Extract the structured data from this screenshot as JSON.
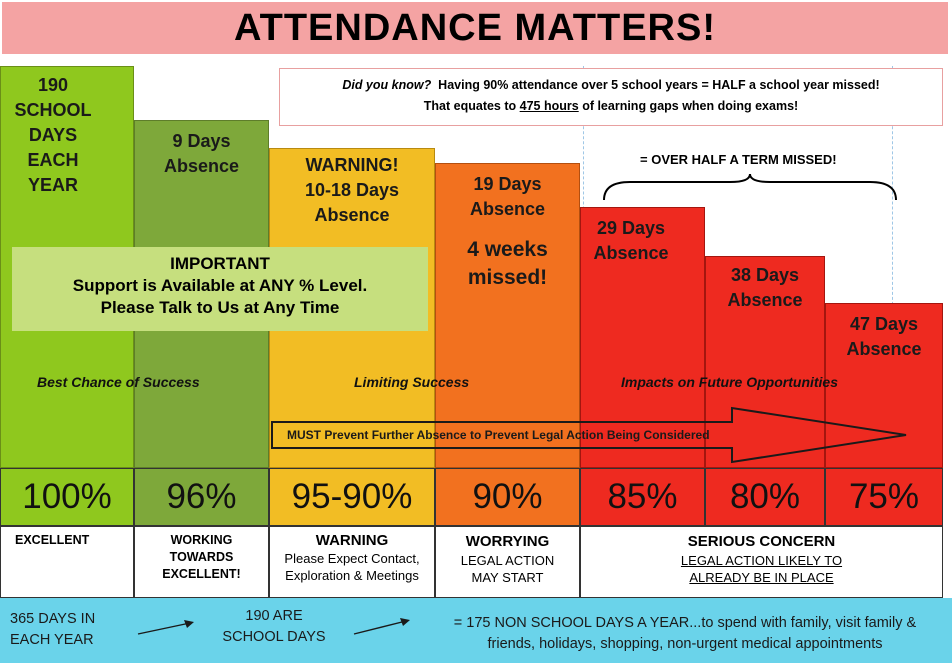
{
  "title": "ATTENDANCE MATTERS!",
  "info": {
    "line1_prefix": "Did you know?",
    "line1_rest": "Having 90% attendance over 5 school years = HALF a school year missed!",
    "line2_pre": "That equates to",
    "line2_hours": "475 hours",
    "line2_post": "of learning gaps when doing exams!"
  },
  "bars": [
    {
      "lines": [
        "190",
        "SCHOOL",
        "DAYS",
        "EACH",
        "YEAR"
      ],
      "color": "#8fc81e"
    },
    {
      "lines": [
        "9 Days",
        "Absence"
      ],
      "color": "#7ea83a"
    },
    {
      "lines": [
        "WARNING!",
        "10-18 Days",
        "Absence"
      ],
      "color": "#f2bd24"
    },
    {
      "lines": [
        "19 Days",
        "Absence"
      ],
      "extra": [
        "4 weeks",
        "missed!"
      ],
      "color": "#f2711f"
    },
    {
      "lines": [
        "29 Days",
        "Absence"
      ],
      "color": "#ee2a20"
    },
    {
      "lines": [
        "38 Days",
        "Absence"
      ],
      "color": "#ee2a20"
    },
    {
      "lines": [
        "47 Days",
        "Absence"
      ],
      "color": "#ee2a20"
    }
  ],
  "over_half_term": "= OVER HALF A TERM MISSED!",
  "important": {
    "heading": "IMPORTANT",
    "line1": "Support is Available at ANY % Level.",
    "line2": "Please Talk to Us at Any Time"
  },
  "zones": {
    "best": "Best Chance of Success",
    "limiting": "Limiting Success",
    "impacts": "Impacts on Future Opportunities"
  },
  "arrow": {
    "must": "MUST",
    "rest": "Prevent Further Absence to Prevent Legal Action Being Considered"
  },
  "percentages": [
    "100%",
    "96%",
    "95-90%",
    "90%",
    "85%",
    "80%",
    "75%"
  ],
  "categories": {
    "excellent": "EXCELLENT",
    "working": [
      "WORKING",
      "TOWARDS",
      "EXCELLENT!"
    ],
    "warning_title": "WARNING",
    "warning_sub": [
      "Please Expect Contact,",
      "Exploration & Meetings"
    ],
    "worrying_title": "WORRYING",
    "worrying_sub": [
      "LEGAL ACTION",
      "MAY START"
    ],
    "serious_title": "SERIOUS CONCERN",
    "serious_sub": [
      "LEGAL ACTION LIKELY TO",
      "ALREADY BE IN PLACE"
    ]
  },
  "bottom": {
    "days_year": [
      "365 DAYS IN",
      "EACH YEAR"
    ],
    "school_days": [
      "190 ARE",
      "SCHOOL DAYS"
    ],
    "non_school": [
      "= 175  NON SCHOOL DAYS A YEAR...to spend with family, visit family &",
      "friends, holidays, shopping, non-urgent medical appointments"
    ]
  },
  "colors": {
    "title_bg": "#f4a3a3",
    "green": "#8fc81e",
    "olive": "#7ea83a",
    "amber": "#f2bd24",
    "orange": "#f2711f",
    "red": "#ee2a20",
    "important_bg": "#c6df7e",
    "bottom_bg": "#6ad3ea"
  }
}
